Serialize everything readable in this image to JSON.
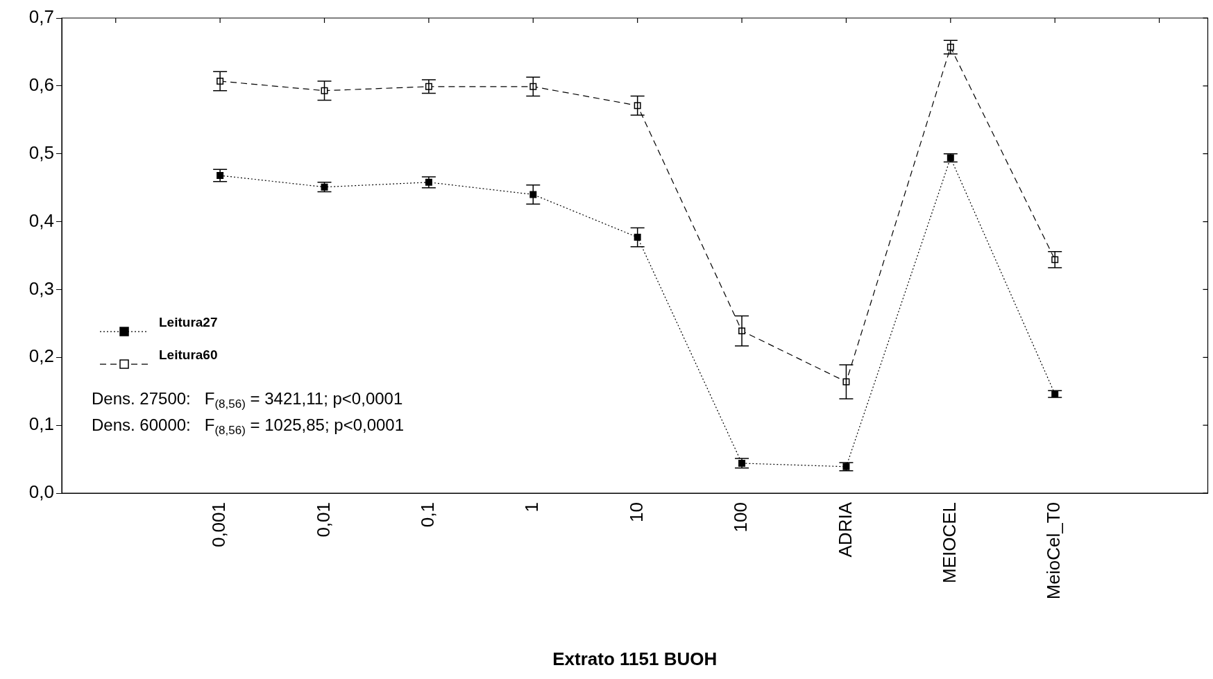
{
  "chart_data": {
    "type": "line",
    "xlabel": "Extrato 1151 BUOH",
    "categories": [
      null,
      "0,001",
      "0,01",
      "0,1",
      "1",
      "10",
      "100",
      "ADRIA",
      "MEIOCEL",
      "MeioCel_T0",
      null
    ],
    "series": [
      {
        "name": "Leitura27",
        "color": "#000000",
        "line_style": "dotted",
        "values": [
          null,
          0.468,
          0.451,
          0.458,
          0.44,
          0.377,
          0.044,
          0.039,
          0.494,
          0.146,
          null
        ],
        "errors": [
          null,
          0.009,
          0.007,
          0.008,
          0.014,
          0.014,
          0.007,
          0.006,
          0.006,
          0.005,
          null
        ]
      },
      {
        "name": "Leitura60",
        "color": "#000000",
        "line_style": "dashed",
        "values": [
          null,
          0.607,
          0.593,
          0.599,
          0.599,
          0.571,
          0.239,
          0.164,
          0.657,
          0.344,
          null
        ],
        "errors": [
          null,
          0.014,
          0.014,
          0.01,
          0.014,
          0.014,
          0.022,
          0.025,
          0.01,
          0.012,
          null
        ]
      }
    ],
    "ylim": [
      0,
      0.7
    ],
    "yticks": [
      {
        "value": 0,
        "label": "0,0"
      },
      {
        "value": 0.1,
        "label": "0,1"
      },
      {
        "value": 0.2,
        "label": "0,2"
      },
      {
        "value": 0.3,
        "label": "0,3"
      },
      {
        "value": 0.4,
        "label": "0,4"
      },
      {
        "value": 0.5,
        "label": "0,5"
      },
      {
        "value": 0.6,
        "label": "0,6"
      },
      {
        "value": 0.7,
        "label": "0,7"
      }
    ],
    "marker": "square",
    "grid": false,
    "legend": "left",
    "annotations": [
      "Dens. 27500:   F$_{(8,56)}$ = 3421,11; p<0,0001",
      "Dens. 60000:   F$_{(8,56)}$ = 1025,85; p<0,0001"
    ]
  }
}
